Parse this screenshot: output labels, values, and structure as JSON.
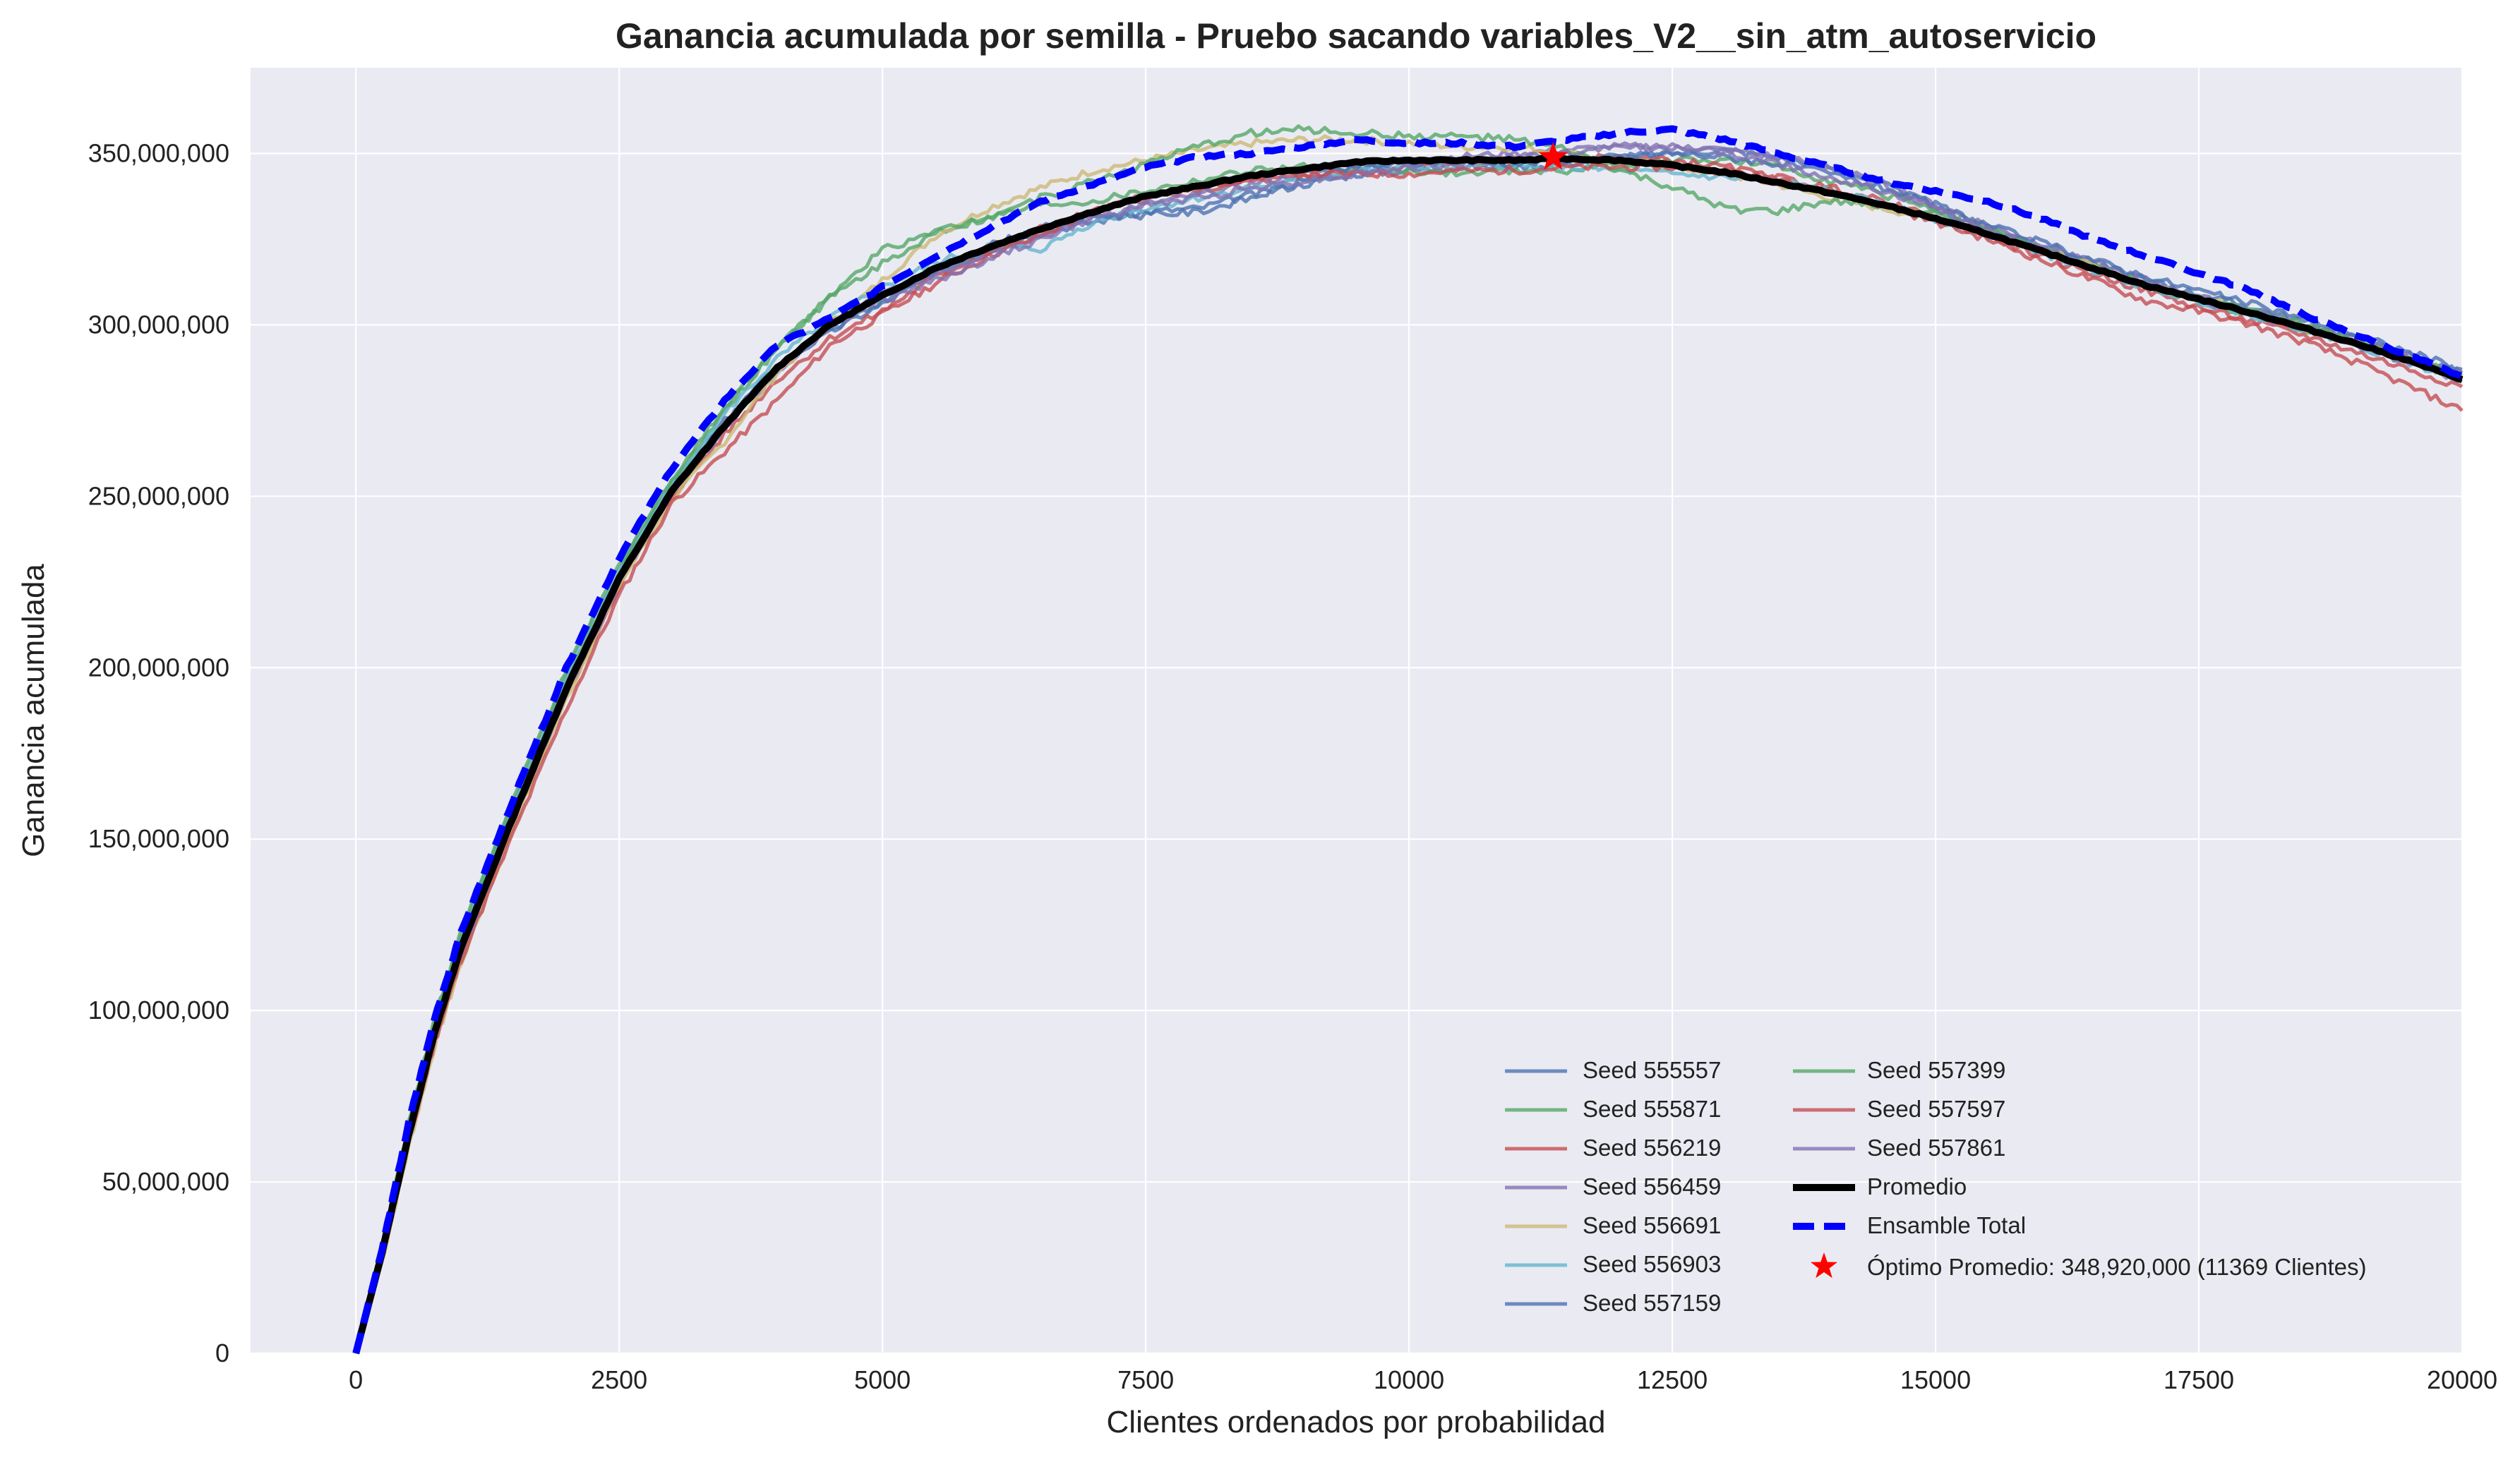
{
  "chart_data": {
    "type": "line",
    "title": "Ganancia acumulada por semilla - Pruebo sacando variables_V2__sin_atm_autoservicio",
    "xlabel": "Clientes ordenados por probabilidad",
    "ylabel": "Ganancia acumulada",
    "xlim": [
      -1000,
      20000
    ],
    "ylim": [
      0,
      375000000
    ],
    "xticks": [
      0,
      2500,
      5000,
      7500,
      10000,
      12500,
      15000,
      17500,
      20000
    ],
    "xtick_labels": [
      "0",
      "2500",
      "5000",
      "7500",
      "10000",
      "12500",
      "15000",
      "17500",
      "20000"
    ],
    "yticks": [
      0,
      50000000,
      100000000,
      150000000,
      200000000,
      250000000,
      300000000,
      350000000
    ],
    "ytick_labels": [
      "0",
      "50,000,000",
      "100,000,000",
      "150,000,000",
      "200,000,000",
      "250,000,000",
      "300,000,000",
      "350,000,000"
    ],
    "grid": true,
    "background": "#eaeaf2",
    "legend_placement": "lower-right",
    "x": [
      0,
      250,
      500,
      750,
      1000,
      1500,
      2000,
      2500,
      3000,
      3500,
      4000,
      4500,
      5000,
      5500,
      6000,
      6500,
      7000,
      7500,
      8000,
      8500,
      9000,
      9500,
      10000,
      10500,
      11000,
      11500,
      12000,
      12500,
      13000,
      13500,
      14000,
      14500,
      15000,
      15500,
      16000,
      16500,
      17000,
      17500,
      18000,
      18500,
      19000,
      19500,
      20000
    ],
    "series": [
      {
        "name": "Seed 555557",
        "color": "#4c72b0",
        "style": "solid",
        "values": [
          0,
          30000000,
          65000000,
          95000000,
          118000000,
          158000000,
          194000000,
          226000000,
          252000000,
          272000000,
          288000000,
          298000000,
          306000000,
          315000000,
          322000000,
          327000000,
          330000000,
          333000000,
          334000000,
          338000000,
          341000000,
          344000000,
          345000000,
          346000000,
          346000000,
          347000000,
          349000000,
          350000000,
          351000000,
          349000000,
          346000000,
          341000000,
          334000000,
          328000000,
          323000000,
          318000000,
          313000000,
          309000000,
          305000000,
          301000000,
          296000000,
          291000000,
          286000000
        ]
      },
      {
        "name": "Seed 555871",
        "color": "#55a868",
        "style": "solid",
        "values": [
          0,
          31000000,
          66000000,
          96000000,
          121000000,
          160000000,
          197000000,
          228000000,
          254000000,
          275000000,
          293000000,
          308000000,
          322000000,
          327000000,
          331000000,
          335000000,
          336000000,
          339000000,
          342000000,
          345000000,
          346000000,
          346000000,
          345000000,
          344000000,
          345000000,
          345000000,
          347000000,
          348000000,
          348000000,
          346000000,
          342000000,
          338000000,
          334000000,
          328000000,
          322000000,
          317000000,
          311000000,
          307000000,
          303000000,
          299000000,
          295000000,
          290000000,
          284000000
        ]
      },
      {
        "name": "Seed 556219",
        "color": "#c44e52",
        "style": "solid",
        "values": [
          0,
          29000000,
          63000000,
          93000000,
          117000000,
          155000000,
          192000000,
          224000000,
          250000000,
          268000000,
          284000000,
          296000000,
          304000000,
          314000000,
          321000000,
          328000000,
          333000000,
          337000000,
          339000000,
          342000000,
          343000000,
          344000000,
          346000000,
          347000000,
          348000000,
          348000000,
          349000000,
          348000000,
          346000000,
          343000000,
          340000000,
          336000000,
          331000000,
          326000000,
          320000000,
          315000000,
          310000000,
          305000000,
          301000000,
          297000000,
          292000000,
          287000000,
          282000000
        ]
      },
      {
        "name": "Seed 556459",
        "color": "#8172b2",
        "style": "solid",
        "values": [
          0,
          28000000,
          62000000,
          92000000,
          116000000,
          156000000,
          193000000,
          225000000,
          251000000,
          270000000,
          286000000,
          300000000,
          309000000,
          315000000,
          321000000,
          326000000,
          331000000,
          335000000,
          338000000,
          341000000,
          344000000,
          346000000,
          348000000,
          349000000,
          350000000,
          351000000,
          352000000,
          352000000,
          351000000,
          349000000,
          346000000,
          341000000,
          335000000,
          329000000,
          324000000,
          318000000,
          313000000,
          308000000,
          304000000,
          300000000,
          296000000,
          291000000,
          286000000
        ]
      },
      {
        "name": "Seed 556691",
        "color": "#ccb974",
        "style": "solid",
        "values": [
          0,
          27000000,
          60000000,
          90000000,
          114000000,
          154000000,
          191000000,
          224000000,
          249000000,
          266000000,
          286000000,
          300000000,
          313000000,
          326000000,
          334000000,
          340000000,
          345000000,
          348000000,
          351000000,
          353000000,
          354000000,
          354000000,
          353000000,
          352000000,
          352000000,
          350000000,
          348000000,
          346000000,
          344000000,
          341000000,
          337000000,
          334000000,
          331000000,
          327000000,
          322000000,
          317000000,
          312000000,
          308000000,
          304000000,
          299000000,
          295000000,
          290000000,
          285000000
        ]
      },
      {
        "name": "Seed 556903",
        "color": "#64b5cd",
        "style": "solid",
        "values": [
          0,
          31000000,
          66000000,
          97000000,
          122000000,
          161000000,
          198000000,
          229000000,
          254000000,
          274000000,
          290000000,
          302000000,
          311000000,
          318000000,
          323000000,
          322000000,
          330000000,
          334000000,
          337000000,
          340000000,
          342000000,
          345000000,
          346000000,
          346000000,
          346000000,
          346000000,
          345000000,
          344000000,
          343000000,
          342000000,
          339000000,
          335000000,
          331000000,
          326000000,
          321000000,
          316000000,
          311000000,
          307000000,
          303000000,
          299000000,
          294000000,
          289000000,
          284000000
        ]
      },
      {
        "name": "Seed 557159",
        "color": "#4c72b0",
        "style": "solid",
        "values": [
          0,
          30000000,
          64000000,
          94000000,
          119000000,
          157000000,
          195000000,
          226000000,
          251000000,
          271000000,
          288000000,
          298000000,
          307000000,
          316000000,
          323000000,
          328000000,
          332000000,
          332000000,
          333000000,
          337000000,
          342000000,
          346000000,
          347000000,
          348000000,
          347000000,
          348000000,
          349000000,
          350000000,
          349000000,
          347000000,
          344000000,
          340000000,
          335000000,
          329000000,
          324000000,
          319000000,
          314000000,
          310000000,
          306000000,
          302000000,
          297000000,
          292000000,
          287000000
        ]
      },
      {
        "name": "Seed 557399",
        "color": "#55a868",
        "style": "solid",
        "values": [
          0,
          32000000,
          67000000,
          98000000,
          123000000,
          162000000,
          199000000,
          230000000,
          255000000,
          276000000,
          294000000,
          308000000,
          318000000,
          327000000,
          332000000,
          337000000,
          342000000,
          347000000,
          352000000,
          356000000,
          357000000,
          356000000,
          355000000,
          355000000,
          354000000,
          351000000,
          345000000,
          340000000,
          334000000,
          333000000,
          336000000,
          335000000,
          332000000,
          327000000,
          322000000,
          317000000,
          312000000,
          308000000,
          304000000,
          300000000,
          295000000,
          290000000,
          285000000
        ]
      },
      {
        "name": "Seed 557597",
        "color": "#c44e52",
        "style": "solid",
        "values": [
          0,
          28000000,
          61000000,
          91000000,
          115000000,
          152000000,
          188000000,
          221000000,
          248000000,
          263000000,
          278000000,
          294000000,
          303000000,
          312000000,
          320000000,
          326000000,
          333000000,
          338000000,
          340000000,
          343000000,
          344000000,
          344000000,
          344000000,
          345000000,
          345000000,
          346000000,
          346000000,
          346000000,
          345000000,
          343000000,
          339000000,
          335000000,
          330000000,
          325000000,
          319000000,
          313000000,
          307000000,
          304000000,
          300000000,
          295000000,
          289000000,
          282000000,
          275000000
        ]
      },
      {
        "name": "Seed 557861",
        "color": "#8172b2",
        "style": "solid",
        "values": [
          0,
          29000000,
          62000000,
          93000000,
          117000000,
          156000000,
          193000000,
          225000000,
          252000000,
          270000000,
          287000000,
          300000000,
          307000000,
          313000000,
          319000000,
          325000000,
          331000000,
          335000000,
          337000000,
          340000000,
          342000000,
          344000000,
          346000000,
          347000000,
          349000000,
          350000000,
          352000000,
          352000000,
          350000000,
          347000000,
          343000000,
          339000000,
          334000000,
          328000000,
          322000000,
          317000000,
          312000000,
          307000000,
          303000000,
          299000000,
          294000000,
          289000000,
          284000000
        ]
      },
      {
        "name": "Promedio",
        "color": "#000000",
        "style": "solid-thick",
        "values": [
          0,
          29500000,
          63500000,
          94000000,
          118500000,
          157000000,
          194000000,
          226000000,
          251500000,
          270500000,
          287500000,
          300000000,
          308500000,
          316500000,
          322500000,
          328000000,
          333000000,
          337500000,
          340500000,
          343500000,
          345500000,
          347500000,
          348000000,
          348000000,
          348000000,
          348500000,
          348000000,
          346500000,
          344500000,
          341500000,
          338500000,
          335000000,
          331000000,
          326500000,
          321500000,
          316500000,
          311500000,
          307500000,
          303500000,
          299000000,
          294500000,
          289500000,
          284000000
        ]
      },
      {
        "name": "Ensamble Total",
        "color": "#0000ff",
        "style": "dashed",
        "values": [
          0,
          30500000,
          67000000,
          98000000,
          123000000,
          162000000,
          200000000,
          232000000,
          258000000,
          278000000,
          294000000,
          302000000,
          311000000,
          320000000,
          328000000,
          336000000,
          341000000,
          346000000,
          349000000,
          350000000,
          352000000,
          354000000,
          353000000,
          353000000,
          352000000,
          354000000,
          356000000,
          357000000,
          354000000,
          350000000,
          346000000,
          342000000,
          339000000,
          336000000,
          331000000,
          325000000,
          320000000,
          315000000,
          310000000,
          303000000,
          297000000,
          291000000,
          285000000
        ]
      }
    ],
    "optimum": {
      "label": "Óptimo Promedio: 348,920,000 (11369 Clientes)",
      "x": 11369,
      "y": 348920000,
      "color": "#ff0000"
    }
  }
}
